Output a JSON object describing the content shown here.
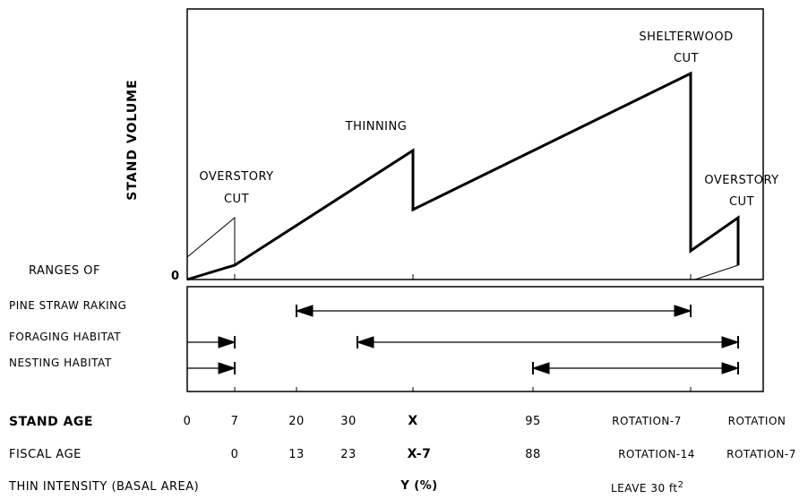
{
  "diagram": {
    "y_axis_label": "STAND VOLUME",
    "zero_label": "0",
    "annotations": {
      "overstory_cut_left": [
        "OVERSTORY",
        "CUT"
      ],
      "thinning": "THINNING",
      "shelterwood_cut": [
        "SHELTERWOOD",
        "CUT"
      ],
      "overstory_cut_right": [
        "OVERSTORY",
        "CUT"
      ]
    },
    "ranges_header": "RANGES OF",
    "ranges": [
      {
        "label": "PINE STRAW RAKING",
        "from_stand_age": "20",
        "to_stand_age": "ROTATION-7"
      },
      {
        "label": "FORAGING HABITAT",
        "from_stand_age": "0",
        "to_stand_age": "7",
        "extra_from": "30",
        "extra_to": "ROTATION"
      },
      {
        "label": "NESTING HABITAT",
        "from_stand_age": "0",
        "to_stand_age": "7",
        "extra_from": "95",
        "extra_to": "ROTATION"
      }
    ]
  },
  "table": {
    "stand_age": {
      "label": "STAND AGE",
      "values": [
        "0",
        "7",
        "20",
        "30",
        "X",
        "95",
        "ROTATION-7",
        "ROTATION"
      ]
    },
    "fiscal_age": {
      "label": "FISCAL AGE",
      "values": [
        "0",
        "13",
        "23",
        "X-7",
        "88",
        "ROTATION-14",
        "ROTATION-7"
      ]
    },
    "thin_intensity": {
      "label": "THIN INTENSITY (BASAL AREA)",
      "y_value": "Y (%)",
      "leave_text": "LEAVE 30 ft",
      "leave_sup": "2"
    }
  }
}
